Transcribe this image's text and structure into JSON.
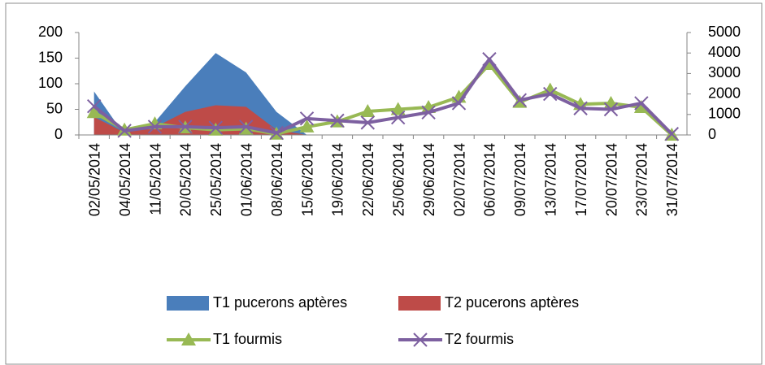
{
  "chart_data": {
    "type": "area-line",
    "categories": [
      "02/05/2014",
      "04/05/2014",
      "11/05/2014",
      "20/05/2014",
      "25/05/2014",
      "01/06/2014",
      "08/06/2014",
      "15/06/2014",
      "19/06/2014",
      "22/06/2014",
      "25/06/2014",
      "29/06/2014",
      "02/07/2014",
      "06/07/2014",
      "09/07/2014",
      "13/07/2014",
      "17/07/2014",
      "20/07/2014",
      "23/07/2014",
      "31/07/2014"
    ],
    "series": [
      {
        "name": "T1 pucerons aptères",
        "type": "area",
        "color": "#4a7ebb",
        "values": [
          85,
          0,
          25,
          95,
          160,
          122,
          45,
          0,
          0,
          0,
          0,
          0,
          0,
          0,
          0,
          0,
          0,
          0,
          0,
          0
        ]
      },
      {
        "name": "T2 pucerons aptères",
        "type": "area",
        "color": "#be4b48",
        "values": [
          35,
          5,
          15,
          45,
          58,
          55,
          10,
          0,
          0,
          0,
          0,
          0,
          0,
          0,
          0,
          0,
          0,
          0,
          0,
          0
        ]
      },
      {
        "name": "T1 fourmis",
        "type": "line",
        "axis": "y2",
        "marker": "triangle",
        "color": "#98b954",
        "values": [
          1100,
          250,
          550,
          350,
          250,
          300,
          50,
          400,
          650,
          1150,
          1250,
          1350,
          1850,
          3450,
          1600,
          2200,
          1500,
          1550,
          1350,
          0
        ]
      },
      {
        "name": "T2 fourmis",
        "type": "line",
        "axis": "y2",
        "marker": "x",
        "color": "#7d60a0",
        "values": [
          1400,
          200,
          400,
          400,
          350,
          400,
          100,
          800,
          700,
          600,
          850,
          1100,
          1550,
          3700,
          1700,
          2000,
          1300,
          1250,
          1550,
          50
        ]
      }
    ],
    "ylim": [
      0,
      200
    ],
    "yticks": [
      0,
      50,
      100,
      150,
      200
    ],
    "y2lim": [
      0,
      5000
    ],
    "y2ticks": [
      0,
      1000,
      2000,
      3000,
      4000,
      5000
    ]
  }
}
